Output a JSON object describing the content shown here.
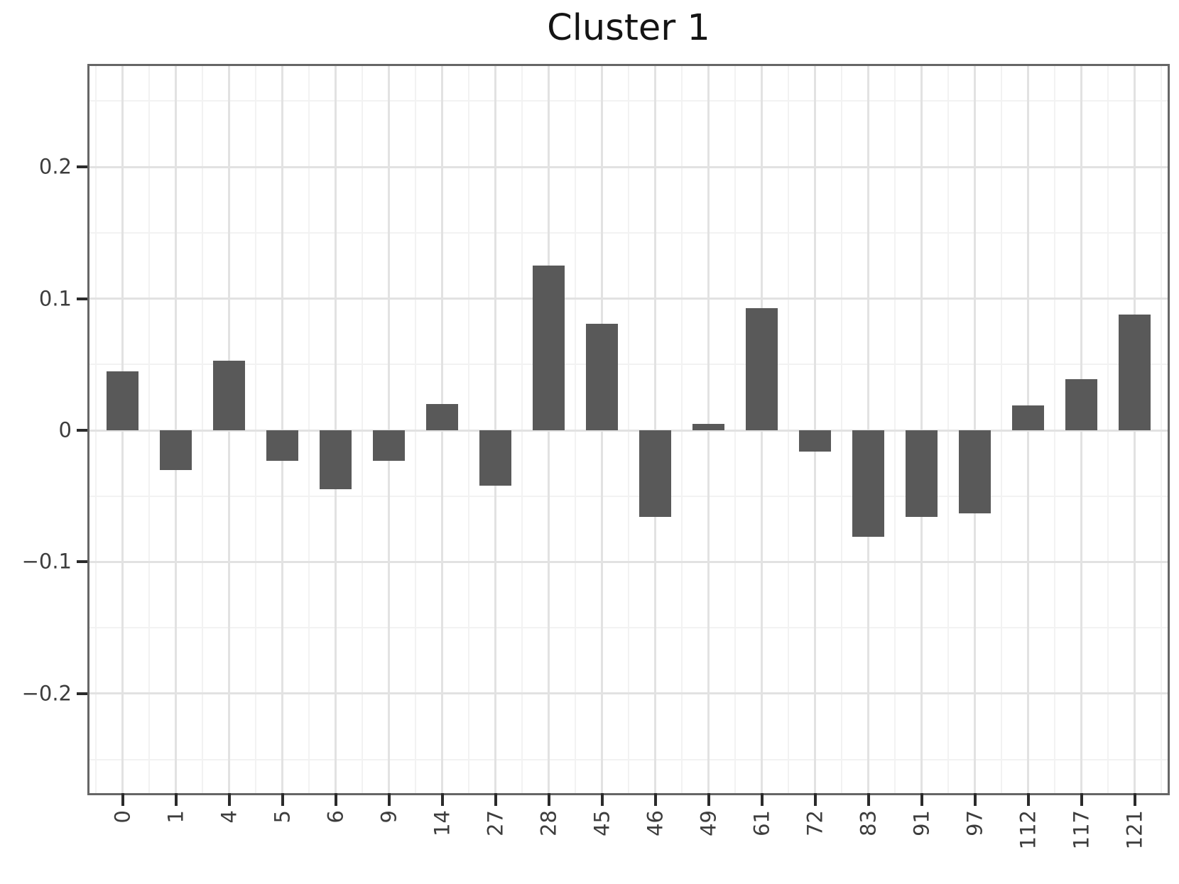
{
  "chart_data": {
    "type": "bar",
    "title": "Cluster 1",
    "categories": [
      "0",
      "1",
      "4",
      "5",
      "6",
      "9",
      "14",
      "27",
      "28",
      "45",
      "46",
      "49",
      "61",
      "72",
      "83",
      "91",
      "97",
      "112",
      "117",
      "121"
    ],
    "values": [
      0.045,
      -0.03,
      0.053,
      -0.023,
      -0.045,
      -0.023,
      0.02,
      -0.042,
      0.125,
      0.081,
      -0.066,
      0.005,
      0.093,
      -0.016,
      -0.081,
      -0.066,
      -0.063,
      0.019,
      0.039,
      0.088
    ],
    "xlabel": "",
    "ylabel": "",
    "ylim": [
      -0.2755,
      0.2766
    ],
    "yticks": [
      {
        "value": -0.2,
        "label": "−0.2"
      },
      {
        "value": -0.1,
        "label": "−0.1"
      },
      {
        "value": 0,
        "label": "0"
      },
      {
        "value": 0.1,
        "label": "0.1"
      },
      {
        "value": 0.2,
        "label": "0.2"
      }
    ],
    "yticks_minor": [
      -0.25,
      -0.15,
      -0.05,
      0.05,
      0.15,
      0.25
    ],
    "grid": "major+minor, horizontal and vertical, light gray",
    "legend": "none",
    "colors": {
      "bar": "#595959",
      "grid_major": "#e2e2e2",
      "grid_minor": "#f2f2f2",
      "spine": "#666666",
      "tick_mark": "#2b2b2b",
      "tick_label": "#3d3d3d",
      "title": "#141414",
      "background": "#ffffff"
    }
  }
}
